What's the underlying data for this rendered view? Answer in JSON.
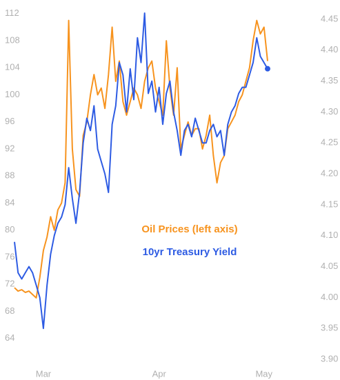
{
  "chart_data": {
    "type": "line",
    "categories": [
      null,
      null,
      null,
      null,
      null,
      null,
      null,
      null,
      "Mar",
      null,
      null,
      null,
      null,
      null,
      null,
      null,
      null,
      null,
      null,
      null,
      null,
      null,
      null,
      null,
      null,
      null,
      null,
      null,
      null,
      null,
      null,
      null,
      null,
      null,
      null,
      null,
      null,
      null,
      null,
      null,
      "Apr",
      null,
      null,
      null,
      null,
      null,
      null,
      null,
      null,
      null,
      null,
      null,
      null,
      null,
      null,
      null,
      null,
      null,
      null,
      null,
      null,
      null,
      null,
      null,
      null,
      null,
      null,
      null,
      null,
      "May",
      null
    ],
    "series": [
      {
        "name": "Oil Prices (left axis)",
        "color": "#f7931e",
        "values": [
          71.5,
          71,
          71.2,
          70.8,
          71,
          70.5,
          70,
          73,
          77,
          79,
          82,
          80,
          83,
          84,
          87,
          111,
          92,
          86,
          85,
          94,
          96,
          100,
          103,
          100,
          101,
          98,
          103,
          110,
          102,
          105,
          99,
          97,
          99,
          101,
          100,
          98,
          102,
          104,
          105,
          101,
          99,
          97,
          108,
          101,
          97,
          104,
          92,
          94,
          96,
          94,
          95,
          95,
          92,
          94,
          97,
          91,
          87,
          90,
          91,
          95,
          96,
          97,
          99,
          100,
          102,
          104,
          108,
          111,
          109,
          110,
          105
        ]
      },
      {
        "name": "10yr Treasury Yield",
        "color": "#2d5be3",
        "axis": "y2",
        "values": [
          4.09,
          4.04,
          4.03,
          4.04,
          4.05,
          4.04,
          4.02,
          4.0,
          3.95,
          4.02,
          4.07,
          4.1,
          4.12,
          4.13,
          4.15,
          4.21,
          4.16,
          4.12,
          4.17,
          4.25,
          4.29,
          4.27,
          4.31,
          4.24,
          4.22,
          4.2,
          4.17,
          4.28,
          4.31,
          4.38,
          4.36,
          4.3,
          4.37,
          4.32,
          4.42,
          4.38,
          4.46,
          4.33,
          4.35,
          4.3,
          4.34,
          4.28,
          4.33,
          4.35,
          4.3,
          4.27,
          4.23,
          4.27,
          4.28,
          4.26,
          4.29,
          4.27,
          4.25,
          4.25,
          4.27,
          4.28,
          4.26,
          4.27,
          4.23,
          4.28,
          4.3,
          4.31,
          4.33,
          4.34,
          4.34,
          4.36,
          4.38,
          4.42,
          4.39,
          4.38,
          4.37
        ]
      }
    ],
    "ylim": [
      60,
      113
    ],
    "yticks": [
      64,
      68,
      72,
      76,
      80,
      84,
      88,
      92,
      96,
      100,
      104,
      108,
      112
    ],
    "y2lim": [
      3.89,
      4.47
    ],
    "y2ticks": [
      {
        "value": 3.9,
        "label": "3.90"
      },
      3.95,
      {
        "value": 4.0,
        "label": "4.00"
      },
      4.05,
      {
        "value": 4.1,
        "label": "4.10"
      },
      4.15,
      {
        "value": 4.2,
        "label": "4.20"
      },
      4.25,
      {
        "value": 4.3,
        "label": "4.30"
      },
      4.35,
      {
        "value": 4.4,
        "label": "4.40"
      },
      4.45
    ],
    "grid": false
  }
}
